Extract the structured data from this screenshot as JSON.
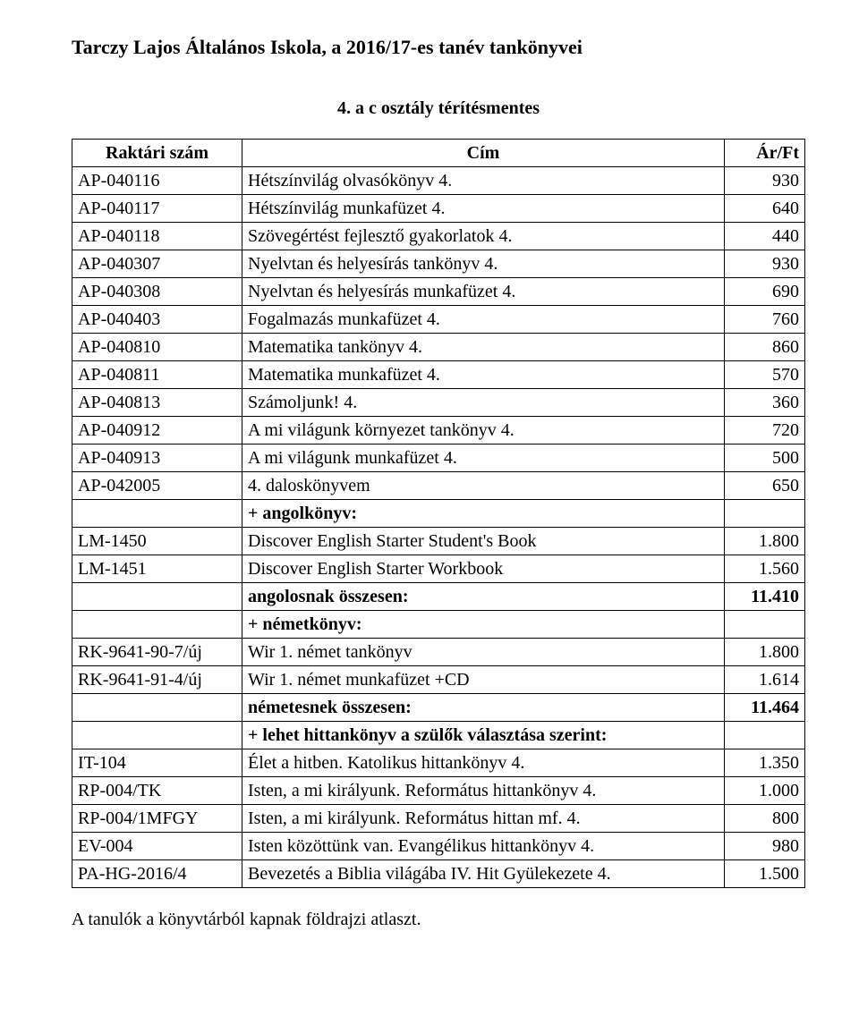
{
  "title_text": "Tarczy Lajos Általános Iskola, a 2016/17-es tanév tankönyvei",
  "subtitle_text": "4. a c osztály térítésmentes",
  "header": {
    "code": "Raktári szám",
    "name": "Cím",
    "price": "Ár/Ft"
  },
  "rows": [
    {
      "code": "AP-040116",
      "name": "Hétszínvilág olvasókönyv 4.",
      "price": "930",
      "bold": false
    },
    {
      "code": "AP-040117",
      "name": "Hétszínvilág munkafüzet 4.",
      "price": "640",
      "bold": false
    },
    {
      "code": "AP-040118",
      "name": "Szövegértést fejlesztő gyakorlatok 4.",
      "price": "440",
      "bold": false
    },
    {
      "code": "AP-040307",
      "name": "Nyelvtan és helyesírás tankönyv 4.",
      "price": "930",
      "bold": false
    },
    {
      "code": "AP-040308",
      "name": "Nyelvtan és helyesírás munkafüzet 4.",
      "price": "690",
      "bold": false
    },
    {
      "code": "AP-040403",
      "name": "Fogalmazás munkafüzet 4.",
      "price": "760",
      "bold": false
    },
    {
      "code": "AP-040810",
      "name": "Matematika tankönyv 4.",
      "price": "860",
      "bold": false
    },
    {
      "code": "AP-040811",
      "name": "Matematika munkafüzet 4.",
      "price": "570",
      "bold": false
    },
    {
      "code": "AP-040813",
      "name": "Számoljunk! 4.",
      "price": "360",
      "bold": false
    },
    {
      "code": "AP-040912",
      "name": "A mi világunk környezet tankönyv 4.",
      "price": "720",
      "bold": false
    },
    {
      "code": "AP-040913",
      "name": "A mi világunk munkafüzet 4.",
      "price": "500",
      "bold": false
    },
    {
      "code": "AP-042005",
      "name": "4. daloskönyvem",
      "price": "650",
      "bold": false
    },
    {
      "code": "",
      "name": "+ angolkönyv:",
      "price": "",
      "bold": true
    },
    {
      "code": "LM-1450",
      "name": "Discover English Starter Student's Book",
      "price": "1.800",
      "bold": false
    },
    {
      "code": "LM-1451",
      "name": "Discover English Starter Workbook",
      "price": "1.560",
      "bold": false
    },
    {
      "code": "",
      "name": "angolosnak összesen:",
      "price": "11.410",
      "bold": true
    },
    {
      "code": "",
      "name": "+ németkönyv:",
      "price": "",
      "bold": true
    },
    {
      "code": "RK-9641-90-7/új",
      "name": "Wir 1. német tankönyv",
      "price": "1.800",
      "bold": false
    },
    {
      "code": "RK-9641-91-4/új",
      "name": "Wir 1. német munkafüzet +CD",
      "price": "1.614",
      "bold": false
    },
    {
      "code": "",
      "name": "németesnek összesen:",
      "price": "11.464",
      "bold": true
    },
    {
      "code": "",
      "name": "+ lehet hittankönyv a szülők választása szerint:",
      "price": "",
      "bold": true
    },
    {
      "code": "IT-104",
      "name": "Élet a hitben. Katolikus hittankönyv 4.",
      "price": "1.350",
      "bold": false
    },
    {
      "code": "RP-004/TK",
      "name": "Isten, a mi királyunk. Református hittankönyv 4.",
      "price": "1.000",
      "bold": false
    },
    {
      "code": "RP-004/1MFGY",
      "name": "Isten, a mi királyunk. Református hittan mf. 4.",
      "price": "800",
      "bold": false
    },
    {
      "code": "EV-004",
      "name": "Isten közöttünk van. Evangélikus hittankönyv 4.",
      "price": "980",
      "bold": false
    },
    {
      "code": "PA-HG-2016/4",
      "name": "Bevezetés a Biblia világába IV. Hit Gyülekezete 4.",
      "price": "1.500",
      "bold": false
    }
  ],
  "footnote_text": "A tanulók a könyvtárból kapnak földrajzi atlaszt."
}
